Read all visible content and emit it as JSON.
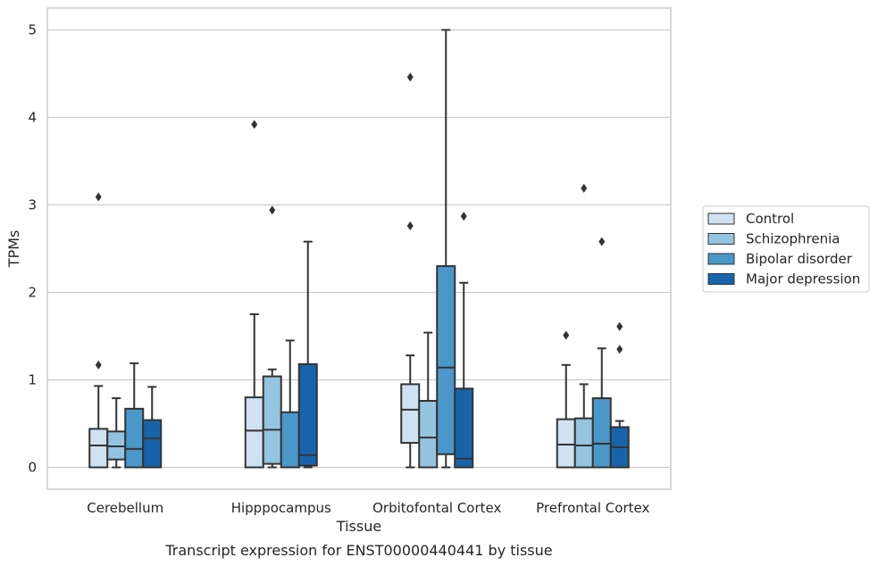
{
  "chart_data": {
    "type": "box",
    "xlabel": "Tissue",
    "ylabel": "TPMs",
    "caption": "Transcript expression for ENST00000440441 by tissue",
    "ylim": [
      -0.25,
      5.25
    ],
    "yticks": [
      0,
      1,
      2,
      3,
      4,
      5
    ],
    "grid": "horizontal",
    "legend_position": "right",
    "categories": [
      "Cerebellum",
      "Hipppocampus",
      "Orbitofontal Cortex",
      "Prefrontal Cortex"
    ],
    "series": [
      {
        "name": "Control",
        "color": "#d0e1f2",
        "boxes": [
          {
            "whislo": 0.0,
            "q1": 0.0,
            "med": 0.25,
            "q3": 0.44,
            "whishi": 0.93,
            "fliers": [
              1.17,
              3.09
            ]
          },
          {
            "whislo": 0.0,
            "q1": 0.0,
            "med": 0.42,
            "q3": 0.8,
            "whishi": 1.75,
            "fliers": [
              3.92
            ]
          },
          {
            "whislo": 0.0,
            "q1": 0.28,
            "med": 0.66,
            "q3": 0.95,
            "whishi": 1.28,
            "fliers": [
              2.76,
              4.46
            ]
          },
          {
            "whislo": 0.0,
            "q1": 0.0,
            "med": 0.26,
            "q3": 0.55,
            "whishi": 1.17,
            "fliers": [
              1.51
            ]
          }
        ]
      },
      {
        "name": "Schizophrenia",
        "color": "#94c4df",
        "boxes": [
          {
            "whislo": 0.0,
            "q1": 0.09,
            "med": 0.24,
            "q3": 0.41,
            "whishi": 0.79,
            "fliers": []
          },
          {
            "whislo": 0.0,
            "q1": 0.04,
            "med": 0.43,
            "q3": 1.04,
            "whishi": 1.12,
            "fliers": [
              2.94
            ]
          },
          {
            "whislo": 0.0,
            "q1": 0.0,
            "med": 0.34,
            "q3": 0.76,
            "whishi": 1.54,
            "fliers": []
          },
          {
            "whislo": 0.0,
            "q1": 0.0,
            "med": 0.25,
            "q3": 0.56,
            "whishi": 0.95,
            "fliers": [
              3.19
            ]
          }
        ]
      },
      {
        "name": "Bipolar disorder",
        "color": "#4a98c9",
        "boxes": [
          {
            "whislo": 0.0,
            "q1": 0.0,
            "med": 0.21,
            "q3": 0.67,
            "whishi": 1.19,
            "fliers": []
          },
          {
            "whislo": 0.0,
            "q1": 0.0,
            "med": 0.0,
            "q3": 0.63,
            "whishi": 1.45,
            "fliers": []
          },
          {
            "whislo": 0.0,
            "q1": 0.15,
            "med": 1.14,
            "q3": 2.3,
            "whishi": 5.0,
            "fliers": []
          },
          {
            "whislo": 0.0,
            "q1": 0.0,
            "med": 0.27,
            "q3": 0.79,
            "whishi": 1.36,
            "fliers": [
              2.58
            ]
          }
        ]
      },
      {
        "name": "Major depression",
        "color": "#1764ab",
        "boxes": [
          {
            "whislo": 0.0,
            "q1": 0.0,
            "med": 0.33,
            "q3": 0.54,
            "whishi": 0.92,
            "fliers": []
          },
          {
            "whislo": 0.0,
            "q1": 0.02,
            "med": 0.14,
            "q3": 1.18,
            "whishi": 2.58,
            "fliers": []
          },
          {
            "whislo": 0.0,
            "q1": 0.0,
            "med": 0.1,
            "q3": 0.9,
            "whishi": 2.11,
            "fliers": [
              2.87
            ]
          },
          {
            "whislo": 0.0,
            "q1": 0.0,
            "med": 0.23,
            "q3": 0.46,
            "whishi": 0.53,
            "fliers": [
              1.35,
              1.61
            ]
          }
        ]
      }
    ]
  }
}
